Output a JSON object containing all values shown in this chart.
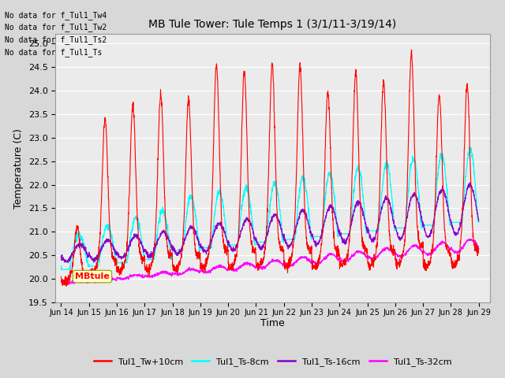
{
  "title": "MB Tule Tower: Tule Temps 1 (3/1/11-3/19/14)",
  "xlabel": "Time",
  "ylabel": "Temperature (C)",
  "ylim": [
    19.5,
    25.2
  ],
  "ytick_values": [
    19.5,
    20.0,
    20.5,
    21.0,
    21.5,
    22.0,
    22.5,
    23.0,
    23.5,
    24.0,
    24.5,
    25.0
  ],
  "xtick_labels": [
    "Jun 14",
    "Jun 15",
    "Jun 16",
    "Jun 17",
    "Jun 18",
    "Jun 19",
    "Jun 20",
    "Jun 21",
    "Jun 22",
    "Jun 23",
    "Jun 24",
    "Jun 25",
    "Jun 26",
    "Jun 27",
    "Jun 28",
    "Jun 29"
  ],
  "colors": {
    "tw": "#ff0000",
    "ts8": "#00ffff",
    "ts16": "#8800cc",
    "ts32": "#ff00ff"
  },
  "legend_labels": [
    "Tul1_Tw+10cm",
    "Tul1_Ts-8cm",
    "Tul1_Ts-16cm",
    "Tul1_Ts-32cm"
  ],
  "no_data_texts": [
    "No data for f_Tul1_Tw4",
    "No data for f_Tul1_Tw2",
    "No data for f_Tul1_Ts2",
    "No data for f_Tul1_Ts"
  ],
  "annotation_text": "MBtule",
  "fig_bg": "#d8d8d8",
  "plot_bg": "#ebebeb"
}
